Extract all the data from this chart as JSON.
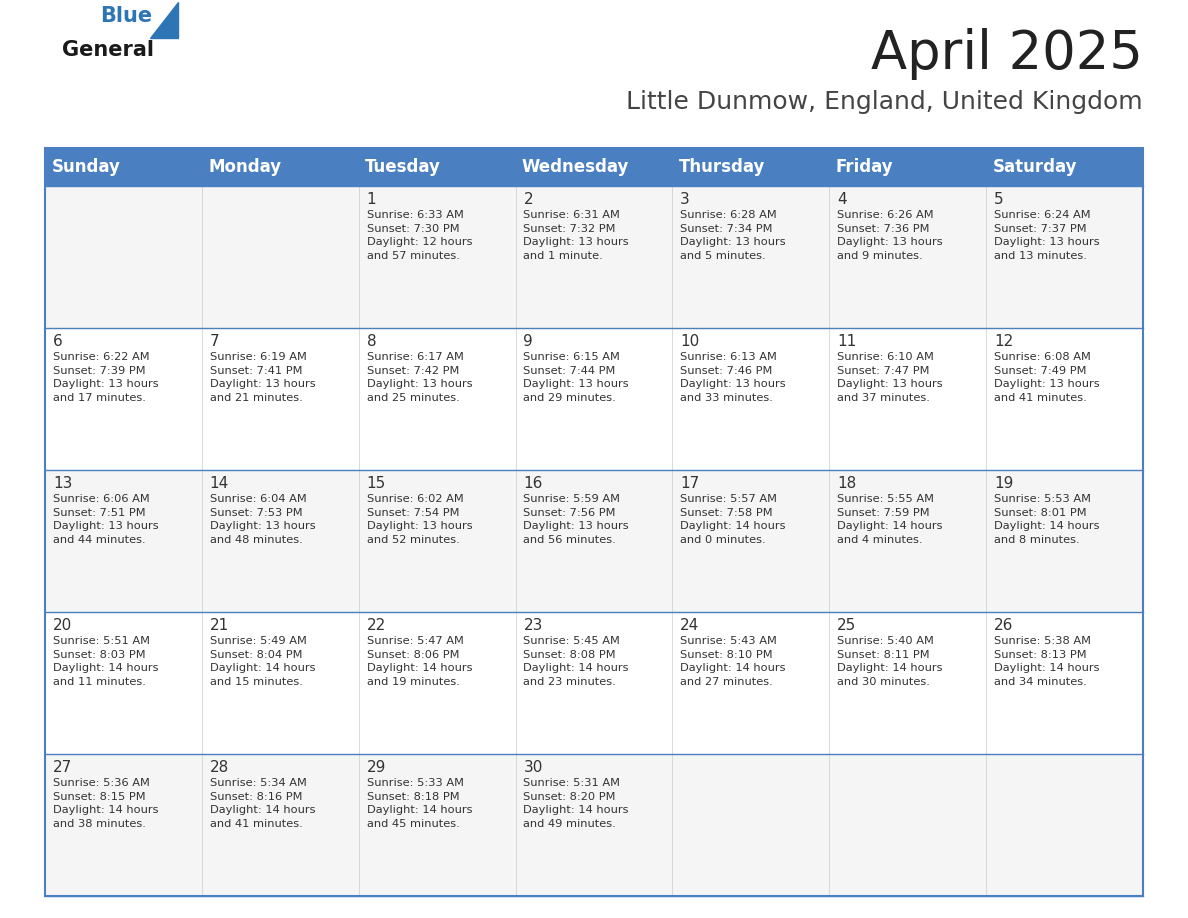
{
  "title": "April 2025",
  "subtitle": "Little Dunmow, England, United Kingdom",
  "header_color": "#4A7FC1",
  "header_text_color": "#FFFFFF",
  "days_of_week": [
    "Sunday",
    "Monday",
    "Tuesday",
    "Wednesday",
    "Thursday",
    "Friday",
    "Saturday"
  ],
  "row_color_even": "#F5F5F5",
  "row_color_odd": "#FFFFFF",
  "border_color": "#4A7FC1",
  "text_color": "#333333",
  "title_color": "#222222",
  "subtitle_color": "#444444",
  "logo_color": "#2E75B6",
  "weeks": [
    [
      {
        "day": null,
        "info": null
      },
      {
        "day": null,
        "info": null
      },
      {
        "day": 1,
        "info": "Sunrise: 6:33 AM\nSunset: 7:30 PM\nDaylight: 12 hours\nand 57 minutes."
      },
      {
        "day": 2,
        "info": "Sunrise: 6:31 AM\nSunset: 7:32 PM\nDaylight: 13 hours\nand 1 minute."
      },
      {
        "day": 3,
        "info": "Sunrise: 6:28 AM\nSunset: 7:34 PM\nDaylight: 13 hours\nand 5 minutes."
      },
      {
        "day": 4,
        "info": "Sunrise: 6:26 AM\nSunset: 7:36 PM\nDaylight: 13 hours\nand 9 minutes."
      },
      {
        "day": 5,
        "info": "Sunrise: 6:24 AM\nSunset: 7:37 PM\nDaylight: 13 hours\nand 13 minutes."
      }
    ],
    [
      {
        "day": 6,
        "info": "Sunrise: 6:22 AM\nSunset: 7:39 PM\nDaylight: 13 hours\nand 17 minutes."
      },
      {
        "day": 7,
        "info": "Sunrise: 6:19 AM\nSunset: 7:41 PM\nDaylight: 13 hours\nand 21 minutes."
      },
      {
        "day": 8,
        "info": "Sunrise: 6:17 AM\nSunset: 7:42 PM\nDaylight: 13 hours\nand 25 minutes."
      },
      {
        "day": 9,
        "info": "Sunrise: 6:15 AM\nSunset: 7:44 PM\nDaylight: 13 hours\nand 29 minutes."
      },
      {
        "day": 10,
        "info": "Sunrise: 6:13 AM\nSunset: 7:46 PM\nDaylight: 13 hours\nand 33 minutes."
      },
      {
        "day": 11,
        "info": "Sunrise: 6:10 AM\nSunset: 7:47 PM\nDaylight: 13 hours\nand 37 minutes."
      },
      {
        "day": 12,
        "info": "Sunrise: 6:08 AM\nSunset: 7:49 PM\nDaylight: 13 hours\nand 41 minutes."
      }
    ],
    [
      {
        "day": 13,
        "info": "Sunrise: 6:06 AM\nSunset: 7:51 PM\nDaylight: 13 hours\nand 44 minutes."
      },
      {
        "day": 14,
        "info": "Sunrise: 6:04 AM\nSunset: 7:53 PM\nDaylight: 13 hours\nand 48 minutes."
      },
      {
        "day": 15,
        "info": "Sunrise: 6:02 AM\nSunset: 7:54 PM\nDaylight: 13 hours\nand 52 minutes."
      },
      {
        "day": 16,
        "info": "Sunrise: 5:59 AM\nSunset: 7:56 PM\nDaylight: 13 hours\nand 56 minutes."
      },
      {
        "day": 17,
        "info": "Sunrise: 5:57 AM\nSunset: 7:58 PM\nDaylight: 14 hours\nand 0 minutes."
      },
      {
        "day": 18,
        "info": "Sunrise: 5:55 AM\nSunset: 7:59 PM\nDaylight: 14 hours\nand 4 minutes."
      },
      {
        "day": 19,
        "info": "Sunrise: 5:53 AM\nSunset: 8:01 PM\nDaylight: 14 hours\nand 8 minutes."
      }
    ],
    [
      {
        "day": 20,
        "info": "Sunrise: 5:51 AM\nSunset: 8:03 PM\nDaylight: 14 hours\nand 11 minutes."
      },
      {
        "day": 21,
        "info": "Sunrise: 5:49 AM\nSunset: 8:04 PM\nDaylight: 14 hours\nand 15 minutes."
      },
      {
        "day": 22,
        "info": "Sunrise: 5:47 AM\nSunset: 8:06 PM\nDaylight: 14 hours\nand 19 minutes."
      },
      {
        "day": 23,
        "info": "Sunrise: 5:45 AM\nSunset: 8:08 PM\nDaylight: 14 hours\nand 23 minutes."
      },
      {
        "day": 24,
        "info": "Sunrise: 5:43 AM\nSunset: 8:10 PM\nDaylight: 14 hours\nand 27 minutes."
      },
      {
        "day": 25,
        "info": "Sunrise: 5:40 AM\nSunset: 8:11 PM\nDaylight: 14 hours\nand 30 minutes."
      },
      {
        "day": 26,
        "info": "Sunrise: 5:38 AM\nSunset: 8:13 PM\nDaylight: 14 hours\nand 34 minutes."
      }
    ],
    [
      {
        "day": 27,
        "info": "Sunrise: 5:36 AM\nSunset: 8:15 PM\nDaylight: 14 hours\nand 38 minutes."
      },
      {
        "day": 28,
        "info": "Sunrise: 5:34 AM\nSunset: 8:16 PM\nDaylight: 14 hours\nand 41 minutes."
      },
      {
        "day": 29,
        "info": "Sunrise: 5:33 AM\nSunset: 8:18 PM\nDaylight: 14 hours\nand 45 minutes."
      },
      {
        "day": 30,
        "info": "Sunrise: 5:31 AM\nSunset: 8:20 PM\nDaylight: 14 hours\nand 49 minutes."
      },
      {
        "day": null,
        "info": null
      },
      {
        "day": null,
        "info": null
      },
      {
        "day": null,
        "info": null
      }
    ]
  ]
}
